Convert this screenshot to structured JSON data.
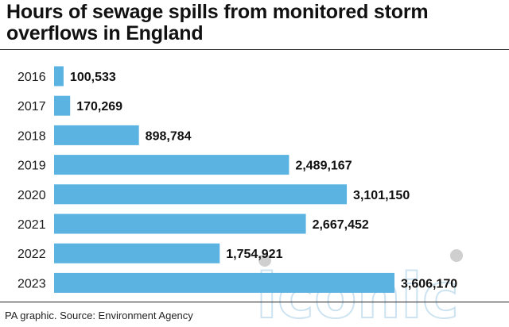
{
  "chart_data": {
    "type": "bar",
    "orientation": "horizontal",
    "title": "Hours of sewage spills from monitored storm overflows in England",
    "categories": [
      "2016",
      "2017",
      "2018",
      "2019",
      "2020",
      "2021",
      "2022",
      "2023"
    ],
    "values": [
      100533,
      170269,
      898784,
      2489167,
      3101150,
      2667452,
      1754921,
      3606170
    ],
    "value_labels": [
      "100,533",
      "170,269",
      "898,784",
      "2,489,167",
      "3,101,150",
      "2,667,452",
      "1,754,921",
      "3,606,170"
    ],
    "xlabel": "",
    "ylabel": "",
    "grid": false,
    "legend": "none",
    "bar_color": "#5ab3e0"
  },
  "source": "PA graphic. Source: Environment Agency",
  "watermark": "iconic"
}
